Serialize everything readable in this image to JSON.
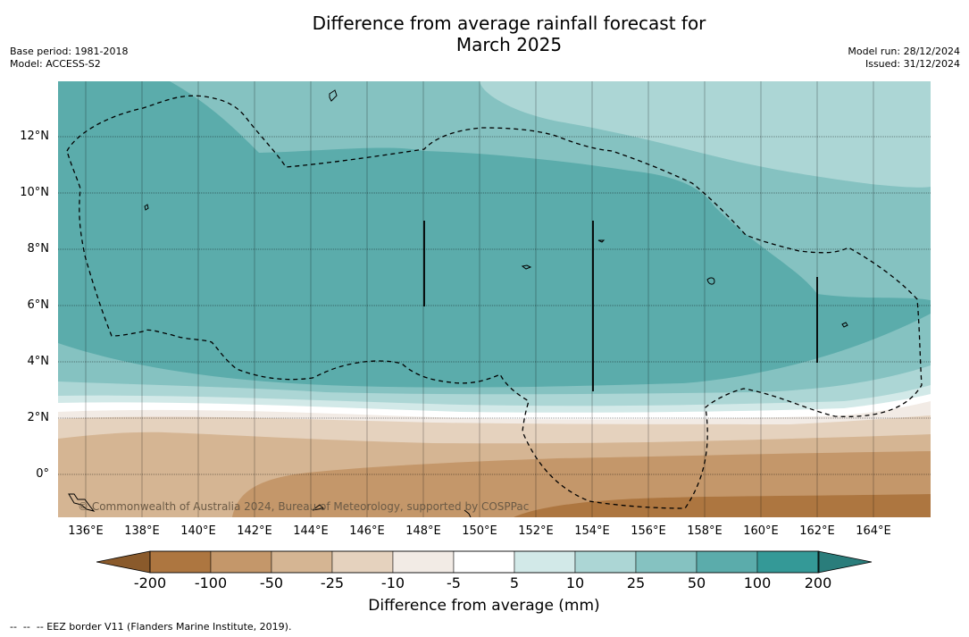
{
  "title_line1": "Difference from average rainfall forecast for",
  "title_line2": "March 2025",
  "base_period": "Base period: 1981-2018",
  "model": "Model: ACCESS-S2",
  "model_run": "Model run: 28/12/2024",
  "issued": "Issued: 31/12/2024",
  "lat_labels": [
    "12°N",
    "10°N",
    "8°N",
    "6°N",
    "4°N",
    "2°N",
    "0°"
  ],
  "lon_labels": [
    "136°E",
    "138°E",
    "140°E",
    "142°E",
    "144°E",
    "146°E",
    "148°E",
    "150°E",
    "152°E",
    "154°E",
    "156°E",
    "158°E",
    "160°E",
    "162°E",
    "164°E"
  ],
  "copyright": "© Commonwealth of Australia 2024, Bureau of Meteorology, supported by COSPPac",
  "colorbar": {
    "ticks": [
      "-200",
      "-100",
      "-50",
      "-25",
      "-10",
      "-5",
      "5",
      "10",
      "25",
      "50",
      "100",
      "200"
    ],
    "colors": [
      "#8a5a2b",
      "#ad7640",
      "#c4976a",
      "#d5b593",
      "#e5d2be",
      "#f2ebe5",
      "#ffffff",
      "#d2e9e8",
      "#acd6d5",
      "#85c2c1",
      "#5bacab",
      "#349997",
      "#2a7d7b"
    ],
    "label": "Difference from average (mm)"
  },
  "footnote": "--  --  -- EEZ border V11 (Flanders Marine Institute, 2019)."
}
